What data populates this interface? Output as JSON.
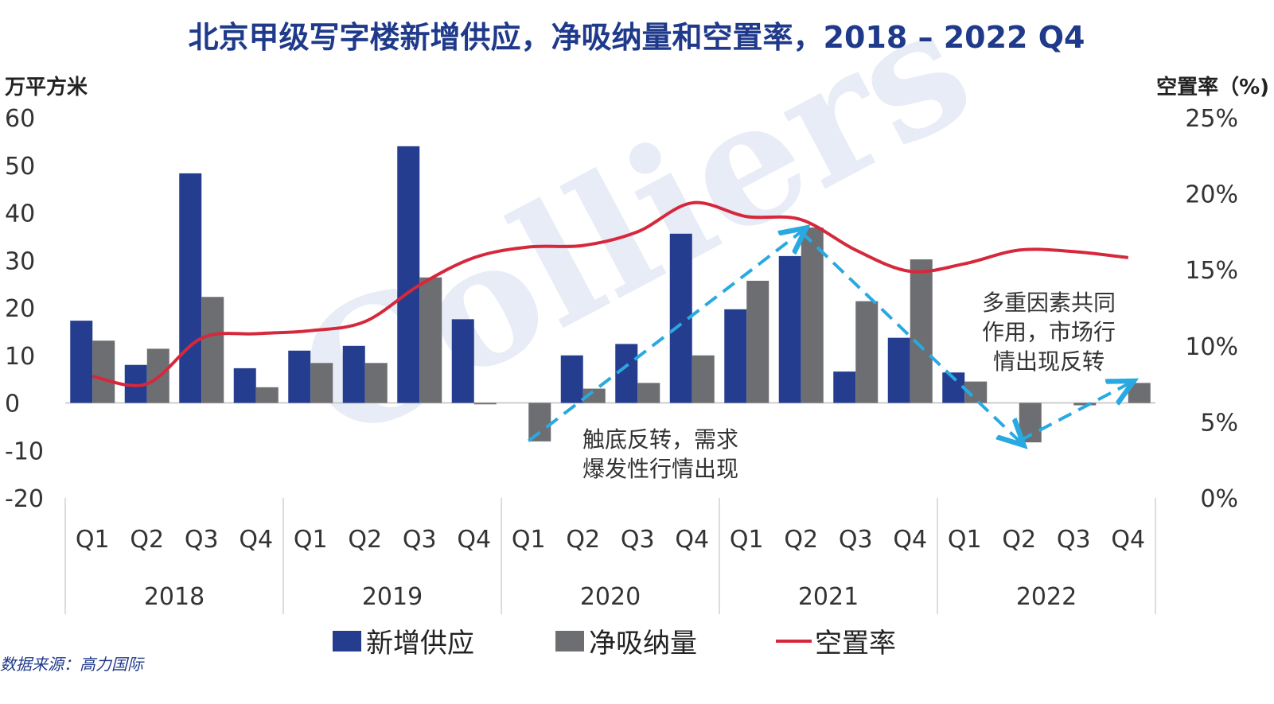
{
  "title": "北京甲级写字楼新增供应，净吸纳量和空置率，2018 – 2022 Q4",
  "source": "数据来源：高力国际",
  "watermark": "Colliers",
  "colors": {
    "supply": "#253d8f",
    "absorption": "#6d6e72",
    "vacancy": "#d6283c",
    "arrow": "#29a9e1"
  },
  "chart_data": {
    "type": "bar",
    "left_axis_title": "万平方米",
    "right_axis_title": "空置率（%)",
    "ylim": [
      -20,
      60
    ],
    "y_ticks": [
      "60",
      "50",
      "40",
      "30",
      "20",
      "10",
      "0",
      "-10",
      "-20"
    ],
    "y2lim": [
      0,
      25
    ],
    "y2_ticks": [
      "25%",
      "20%",
      "15%",
      "10%",
      "5%",
      "0%"
    ],
    "years": [
      "2018",
      "2019",
      "2020",
      "2021",
      "2022"
    ],
    "categories": [
      "Q1",
      "Q2",
      "Q3",
      "Q4",
      "Q1",
      "Q2",
      "Q3",
      "Q4",
      "Q1",
      "Q2",
      "Q3",
      "Q4",
      "Q1",
      "Q2",
      "Q3",
      "Q4",
      "Q1",
      "Q2",
      "Q3",
      "Q4"
    ],
    "series": [
      {
        "name": "新增供应",
        "type": "bar",
        "axis": "left",
        "values": [
          17.3,
          8.0,
          48.3,
          7.3,
          11.0,
          12.0,
          54.0,
          17.6,
          0,
          10.0,
          12.4,
          35.6,
          19.7,
          30.9,
          6.6,
          13.7,
          6.4,
          0,
          0,
          0
        ]
      },
      {
        "name": "净吸纳量",
        "type": "bar",
        "axis": "left",
        "values": [
          13.1,
          11.4,
          22.3,
          3.3,
          8.4,
          8.4,
          26.4,
          -0.3,
          -8.1,
          3.0,
          4.2,
          10.0,
          25.7,
          36.9,
          21.4,
          30.2,
          4.5,
          -8.3,
          -0.5,
          4.2
        ]
      },
      {
        "name": "空置率",
        "type": "line",
        "axis": "right",
        "values": [
          8.0,
          7.5,
          10.5,
          10.8,
          11.0,
          11.6,
          14.0,
          15.8,
          16.5,
          16.6,
          17.5,
          19.4,
          18.5,
          18.3,
          16.3,
          14.9,
          15.4,
          16.3,
          16.2,
          15.8
        ]
      }
    ],
    "annotations": [
      {
        "lines": [
          "触底反转，需求",
          "爆发性行情出现"
        ]
      },
      {
        "lines": [
          "多重因素共同",
          "作用，市场行",
          "情出现反转"
        ]
      }
    ],
    "trend_arrows": [
      {
        "from": [
          8,
          -8
        ],
        "to": [
          13,
          36
        ]
      },
      {
        "from": [
          13,
          36
        ],
        "to": [
          17,
          -8
        ]
      },
      {
        "from": [
          17,
          -8
        ],
        "to": [
          19,
          4
        ]
      }
    ]
  }
}
